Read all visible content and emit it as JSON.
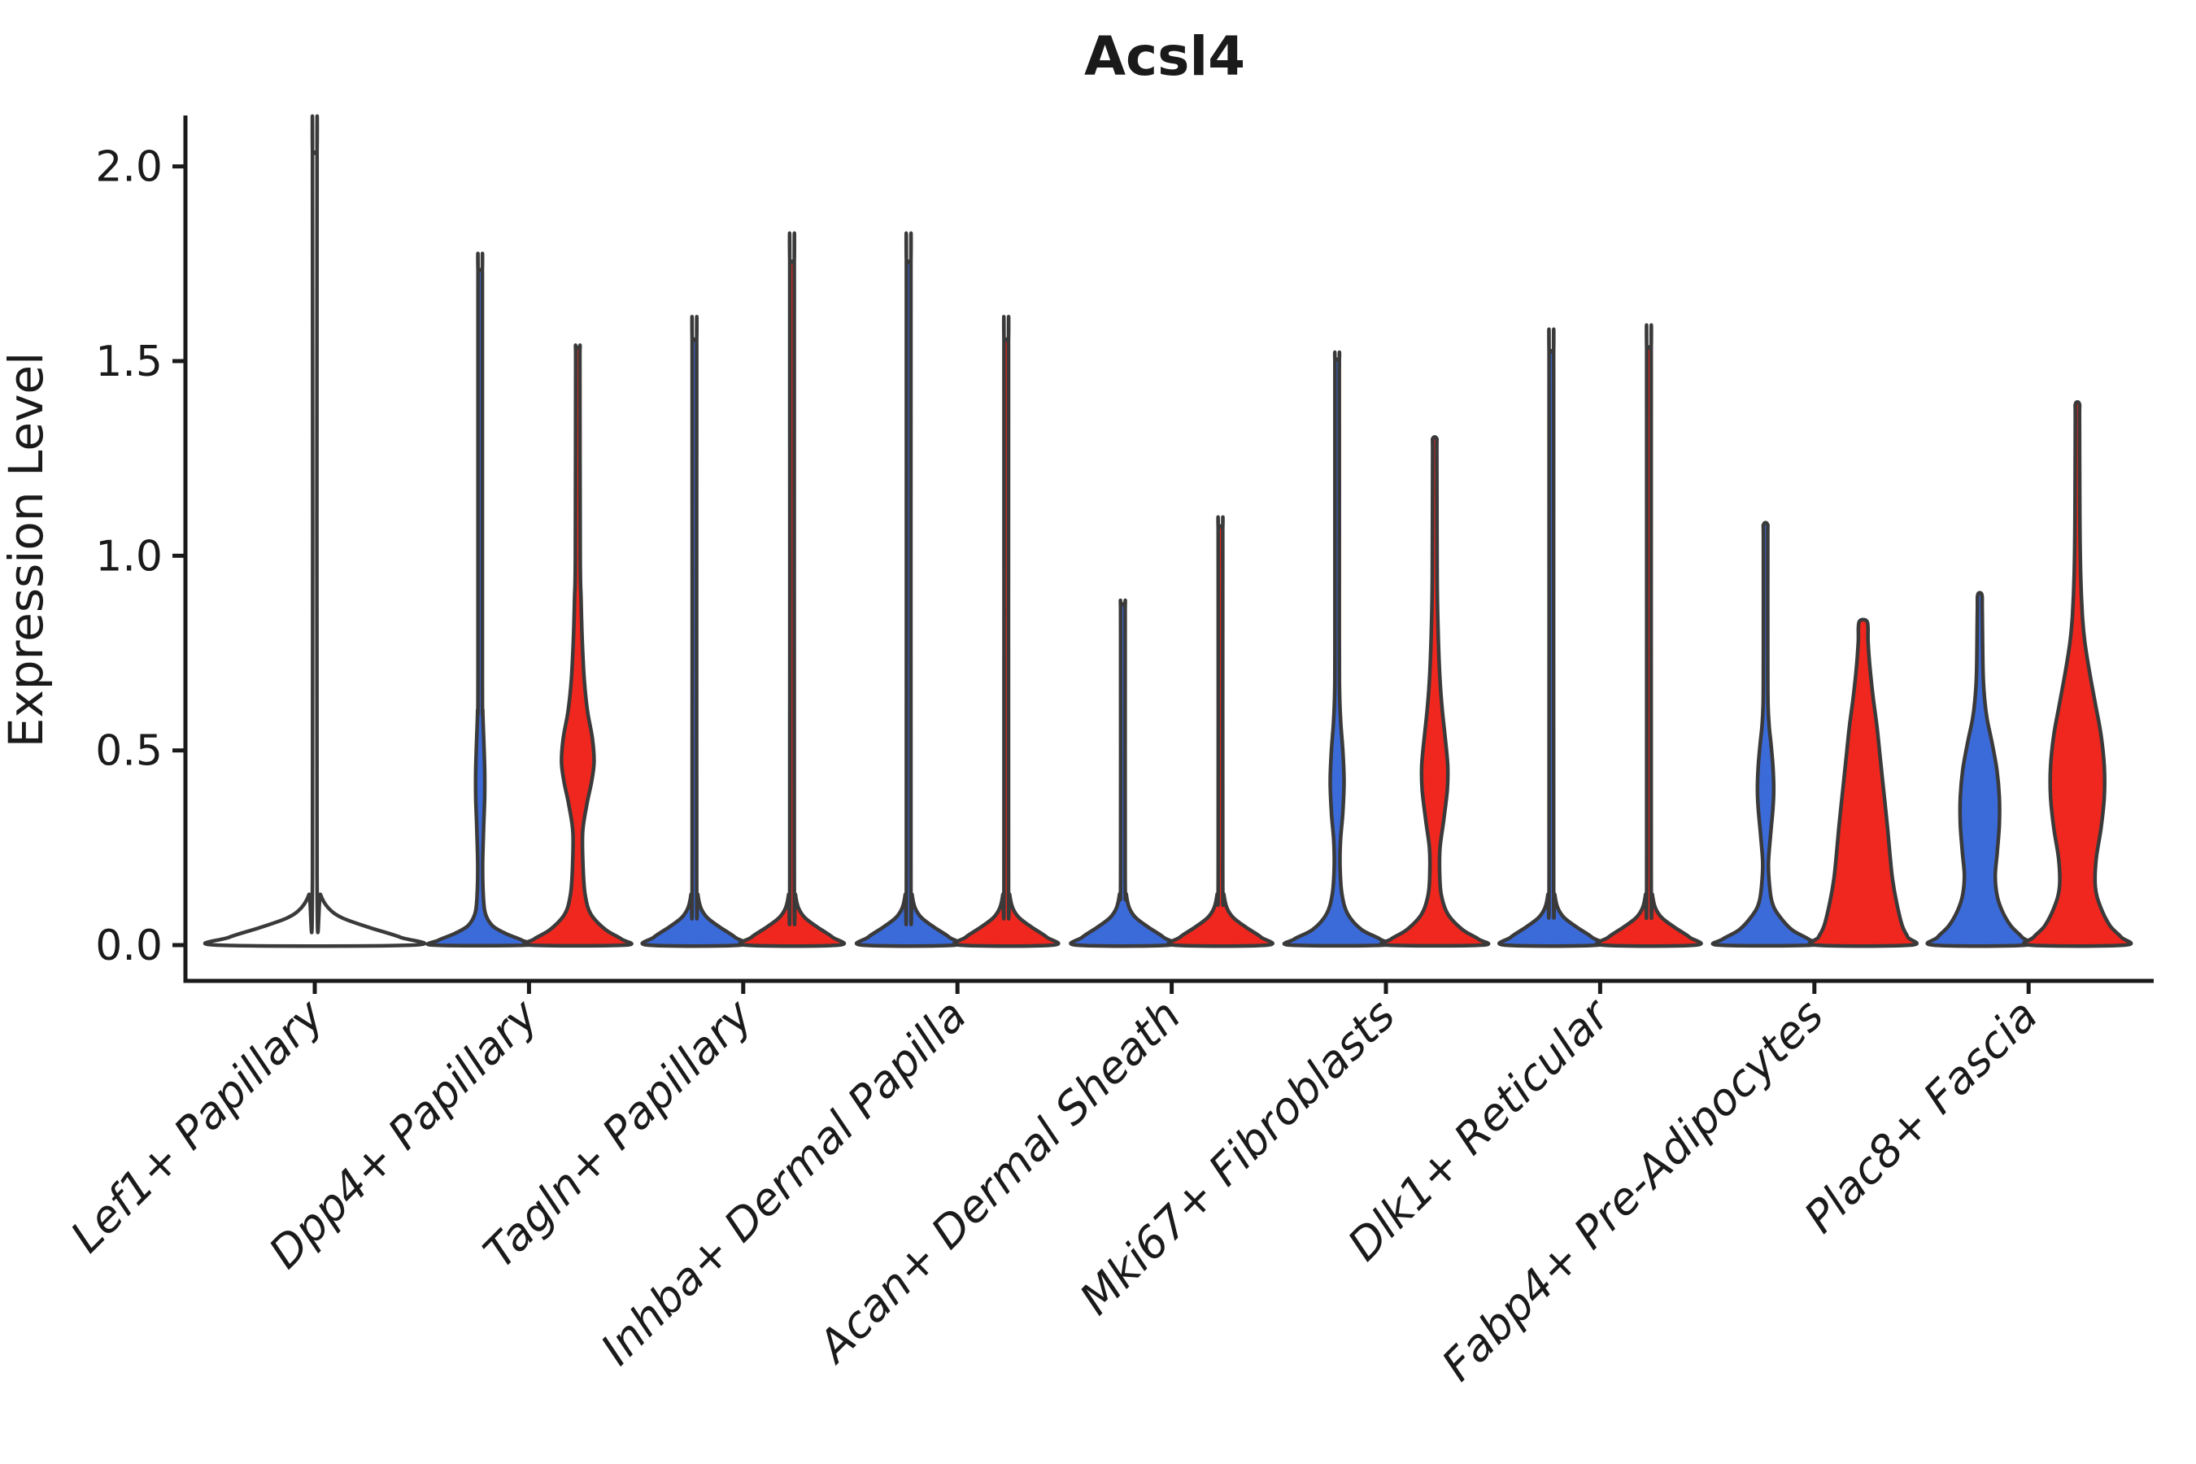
{
  "title": "Acsl4",
  "y_axis": {
    "label": "Expression Level",
    "tick_labels": [
      "0.0",
      "0.5",
      "1.0",
      "1.5",
      "2.0"
    ]
  },
  "colors": {
    "blue": "#3B6AD9",
    "red": "#F0271E",
    "outline": "#3A3A3A",
    "axis": "#1a1a1a",
    "text": "#1a1a1a",
    "background": "#ffffff"
  },
  "chart_data": {
    "type": "violin",
    "title": "Acsl4",
    "ylabel": "Expression Level",
    "yticks": [
      0.0,
      0.5,
      1.0,
      1.5,
      2.0
    ],
    "ylim": [
      -0.1,
      2.13
    ],
    "grid": false,
    "legend": "none",
    "categories": [
      "Lef1+ Papillary",
      "Dpp4+ Papillary",
      "Tagln+ Papillary",
      "Inhba+ Dermal Papilla",
      "Acan+ Dermal Sheath",
      "Mki67+ Fibroblasts",
      "Dlk1+ Reticular",
      "Fabp4+ Pre-Adipocytes",
      "Plac8+ Fascia"
    ],
    "groups": [
      {
        "name": "blue",
        "color": "#3B6AD9"
      },
      {
        "name": "red",
        "color": "#F0271E"
      }
    ],
    "violins": [
      {
        "category": "Lef1+ Papillary",
        "group": "single",
        "max_expression": 2.03,
        "shape": "collapsed",
        "width": "full"
      },
      {
        "category": "Dpp4+ Papillary",
        "group": "blue",
        "max_expression": 1.73,
        "shape": "custom",
        "profile": [
          [
            0,
            57
          ],
          [
            0.012,
            52
          ],
          [
            0.03,
            31
          ],
          [
            0.05,
            15
          ],
          [
            0.08,
            6.5
          ],
          [
            0.12,
            4
          ],
          [
            0.2,
            3
          ],
          [
            0.3,
            4.2
          ],
          [
            0.38,
            5.5
          ],
          [
            0.45,
            5.5
          ],
          [
            0.52,
            4.5
          ],
          [
            0.6,
            3.2
          ],
          [
            0.7,
            2.7
          ],
          [
            1.69,
            2.7
          ],
          [
            1.73,
            2.4
          ]
        ]
      },
      {
        "category": "Dpp4+ Papillary",
        "group": "red",
        "max_expression": 1.53,
        "shape": "custom",
        "profile": [
          [
            0,
            58
          ],
          [
            0.015,
            54
          ],
          [
            0.04,
            34
          ],
          [
            0.08,
            16
          ],
          [
            0.13,
            9
          ],
          [
            0.2,
            6.5
          ],
          [
            0.29,
            6
          ],
          [
            0.36,
            11
          ],
          [
            0.42,
            17
          ],
          [
            0.47,
            20
          ],
          [
            0.53,
            18
          ],
          [
            0.6,
            12
          ],
          [
            0.68,
            8
          ],
          [
            0.78,
            5.5
          ],
          [
            0.89,
            4
          ],
          [
            1.0,
            3
          ],
          [
            1.49,
            2.6
          ],
          [
            1.53,
            2.4
          ]
        ]
      },
      {
        "category": "Tagln+ Papillary",
        "group": "blue",
        "max_expression": 1.55,
        "shape": "collapsed"
      },
      {
        "category": "Tagln+ Papillary",
        "group": "red",
        "max_expression": 1.75,
        "shape": "collapsed"
      },
      {
        "category": "Inhba+ Dermal Papilla",
        "group": "blue",
        "max_expression": 1.75,
        "shape": "collapsed"
      },
      {
        "category": "Inhba+ Dermal Papilla",
        "group": "red",
        "max_expression": 1.55,
        "shape": "collapsed"
      },
      {
        "category": "Acan+ Dermal Sheath",
        "group": "blue",
        "max_expression": 0.87,
        "shape": "collapsed"
      },
      {
        "category": "Acan+ Dermal Sheath",
        "group": "red",
        "max_expression": 1.07,
        "shape": "collapsed"
      },
      {
        "category": "Mki67+ Fibroblasts",
        "group": "blue",
        "max_expression": 1.5,
        "shape": "custom",
        "profile": [
          [
            0,
            57
          ],
          [
            0.015,
            53
          ],
          [
            0.04,
            30
          ],
          [
            0.08,
            13
          ],
          [
            0.13,
            6
          ],
          [
            0.2,
            3.6
          ],
          [
            0.27,
            4.2
          ],
          [
            0.34,
            7
          ],
          [
            0.42,
            8.5
          ],
          [
            0.5,
            7
          ],
          [
            0.57,
            4.5
          ],
          [
            0.65,
            3
          ],
          [
            0.8,
            2.7
          ],
          [
            1.46,
            2.7
          ],
          [
            1.5,
            2.4
          ]
        ]
      },
      {
        "category": "Mki67+ Fibroblasts",
        "group": "red",
        "max_expression": 1.3,
        "shape": "custom",
        "profile": [
          [
            0,
            58
          ],
          [
            0.015,
            54
          ],
          [
            0.04,
            34
          ],
          [
            0.08,
            16
          ],
          [
            0.13,
            8
          ],
          [
            0.19,
            6
          ],
          [
            0.25,
            6.5
          ],
          [
            0.32,
            11
          ],
          [
            0.4,
            15.5
          ],
          [
            0.46,
            16
          ],
          [
            0.53,
            13
          ],
          [
            0.61,
            9
          ],
          [
            0.7,
            6
          ],
          [
            0.82,
            4
          ],
          [
            0.95,
            3
          ],
          [
            1.26,
            2.6
          ],
          [
            1.3,
            2.4
          ]
        ]
      },
      {
        "category": "Dlk1+ Reticular",
        "group": "blue",
        "max_expression": 1.52,
        "shape": "collapsed"
      },
      {
        "category": "Dlk1+ Reticular",
        "group": "red",
        "max_expression": 1.53,
        "shape": "collapsed"
      },
      {
        "category": "Fabp4+ Pre-Adipocytes",
        "group": "blue",
        "max_expression": 1.08,
        "shape": "custom",
        "profile": [
          [
            0,
            57
          ],
          [
            0.015,
            53
          ],
          [
            0.04,
            32
          ],
          [
            0.08,
            15
          ],
          [
            0.11,
            8
          ],
          [
            0.15,
            5
          ],
          [
            0.21,
            3.5
          ],
          [
            0.28,
            6
          ],
          [
            0.35,
            9
          ],
          [
            0.4,
            10
          ],
          [
            0.46,
            9
          ],
          [
            0.52,
            6.5
          ],
          [
            0.56,
            4.5
          ],
          [
            0.62,
            3
          ],
          [
            0.75,
            2.7
          ],
          [
            1.04,
            2.7
          ],
          [
            1.08,
            2.4
          ]
        ]
      },
      {
        "category": "Fabp4+ Pre-Adipocytes",
        "group": "red",
        "max_expression": 0.83,
        "shape": "custom",
        "profile": [
          [
            0,
            58
          ],
          [
            0.02,
            55
          ],
          [
            0.05,
            48
          ],
          [
            0.11,
            41
          ],
          [
            0.17,
            36
          ],
          [
            0.23,
            33
          ],
          [
            0.3,
            30
          ],
          [
            0.4,
            25
          ],
          [
            0.5,
            20
          ],
          [
            0.56,
            17
          ],
          [
            0.64,
            12
          ],
          [
            0.72,
            8
          ],
          [
            0.78,
            6
          ],
          [
            0.83,
            5
          ]
        ]
      },
      {
        "category": "Plac8+ Fascia",
        "group": "blue",
        "max_expression": 0.9,
        "shape": "custom",
        "profile": [
          [
            0,
            57
          ],
          [
            0.02,
            52
          ],
          [
            0.05,
            38
          ],
          [
            0.09,
            27
          ],
          [
            0.13,
            21
          ],
          [
            0.18,
            19
          ],
          [
            0.24,
            21.5
          ],
          [
            0.31,
            24
          ],
          [
            0.38,
            24
          ],
          [
            0.45,
            21
          ],
          [
            0.52,
            15
          ],
          [
            0.58,
            9
          ],
          [
            0.63,
            6
          ],
          [
            0.7,
            4
          ],
          [
            0.86,
            3
          ],
          [
            0.9,
            2.5
          ]
        ]
      },
      {
        "category": "Plac8+ Fascia",
        "group": "red",
        "max_expression": 1.39,
        "shape": "custom",
        "profile": [
          [
            0,
            58
          ],
          [
            0.02,
            54
          ],
          [
            0.05,
            40
          ],
          [
            0.1,
            28
          ],
          [
            0.15,
            22
          ],
          [
            0.22,
            23
          ],
          [
            0.3,
            29
          ],
          [
            0.38,
            33
          ],
          [
            0.46,
            33
          ],
          [
            0.54,
            29
          ],
          [
            0.62,
            22
          ],
          [
            0.7,
            15
          ],
          [
            0.78,
            9
          ],
          [
            0.85,
            6
          ],
          [
            0.95,
            4
          ],
          [
            1.1,
            3
          ],
          [
            1.35,
            2.6
          ],
          [
            1.39,
            2.4
          ]
        ]
      }
    ]
  }
}
